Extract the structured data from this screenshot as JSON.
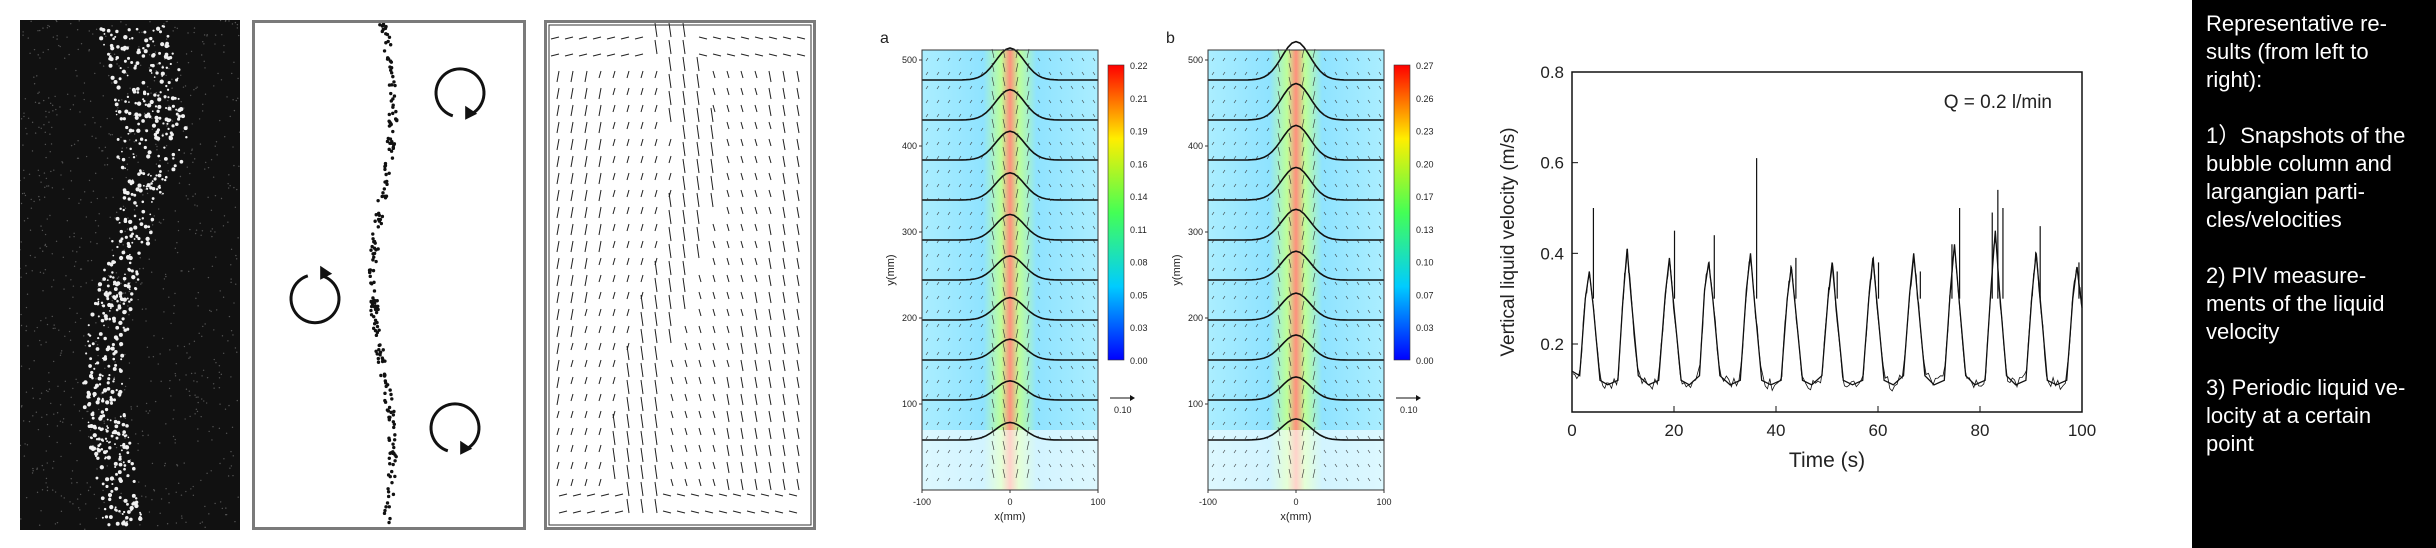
{
  "panels": {
    "bubble_snapshot": {
      "description_icon": "bubble-column-photo"
    },
    "particle_track": {
      "description_icon": "lagrangian-particles"
    },
    "velocity_vectors": {
      "description_icon": "vector-field"
    }
  },
  "piv_a": {
    "label": "a",
    "ylabel": "y(mm)",
    "xlabel": "x(mm)",
    "yticks": [
      "100",
      "200",
      "300",
      "400",
      "500"
    ],
    "xticks": [
      "-100",
      "0",
      "100"
    ],
    "colorbar": [
      "0.22",
      "0.21",
      "0.19",
      "0.16",
      "0.14",
      "0.11",
      "0.08",
      "0.05",
      "0.03",
      "0.00"
    ],
    "scale_value": "0.10"
  },
  "piv_b": {
    "label": "b",
    "ylabel": "y(mm)",
    "xlabel": "x(mm)",
    "yticks": [
      "100",
      "200",
      "300",
      "400",
      "500"
    ],
    "xticks": [
      "-100",
      "0",
      "100"
    ],
    "colorbar": [
      "0.27",
      "0.26",
      "0.23",
      "0.20",
      "0.17",
      "0.13",
      "0.10",
      "0.07",
      "0.03",
      "0.00"
    ],
    "scale_value": "0.10"
  },
  "chart_data": {
    "type": "line",
    "title": "",
    "annotation": "Q = 0.2 l/min",
    "xlabel": "Time (s)",
    "ylabel": "Vertical liquid velocity (m/s)",
    "xlim": [
      0,
      100
    ],
    "ylim": [
      0.05,
      0.8
    ],
    "xticks": [
      "0",
      "20",
      "40",
      "60",
      "80",
      "100"
    ],
    "yticks": [
      "0.2",
      "0.4",
      "0.6",
      "0.8"
    ],
    "series": [
      {
        "values_note": "periodic peaks",
        "x": [
          0,
          1.5,
          2.6,
          3.4,
          4.2,
          5.5,
          7,
          9,
          10,
          10.8,
          11.6,
          13,
          15,
          17,
          18.3,
          19.1,
          20,
          21.4,
          23,
          25,
          26,
          26.8,
          27.6,
          29,
          31,
          33,
          34.2,
          35.0,
          35.8,
          37.2,
          39,
          41,
          42.2,
          43.0,
          43.8,
          45.2,
          47,
          49,
          50.2,
          51.0,
          51.8,
          53.2,
          55,
          57,
          58.2,
          59.0,
          59.8,
          61.2,
          63,
          65,
          66.2,
          67.0,
          67.8,
          69.2,
          71,
          73,
          74.2,
          75.0,
          75.8,
          77.2,
          79,
          81,
          82.2,
          83.0,
          83.8,
          85.2,
          87,
          89,
          90.2,
          91.0,
          91.8,
          93.2,
          95,
          97,
          98.2,
          99.0,
          100
        ],
        "y": [
          0.14,
          0.13,
          0.3,
          0.36,
          0.28,
          0.12,
          0.11,
          0.12,
          0.3,
          0.41,
          0.3,
          0.13,
          0.11,
          0.12,
          0.31,
          0.39,
          0.28,
          0.12,
          0.11,
          0.13,
          0.32,
          0.38,
          0.3,
          0.13,
          0.11,
          0.12,
          0.32,
          0.4,
          0.29,
          0.12,
          0.11,
          0.12,
          0.3,
          0.37,
          0.28,
          0.12,
          0.11,
          0.13,
          0.3,
          0.38,
          0.28,
          0.12,
          0.11,
          0.12,
          0.3,
          0.39,
          0.29,
          0.12,
          0.11,
          0.13,
          0.31,
          0.4,
          0.3,
          0.13,
          0.11,
          0.12,
          0.32,
          0.42,
          0.31,
          0.13,
          0.11,
          0.12,
          0.33,
          0.45,
          0.32,
          0.13,
          0.11,
          0.12,
          0.31,
          0.4,
          0.3,
          0.12,
          0.11,
          0.12,
          0.3,
          0.37,
          0.28
        ]
      }
    ],
    "spikes_x": [
      4.2,
      20.1,
      27.9,
      36.2,
      43.9,
      52.0,
      60.1,
      68.3,
      74.5,
      76.0,
      82.4,
      83.5,
      84.5,
      91.8,
      99.4
    ],
    "spikes_y": [
      0.5,
      0.45,
      0.44,
      0.61,
      0.39,
      0.36,
      0.38,
      0.36,
      0.42,
      0.5,
      0.49,
      0.54,
      0.5,
      0.46,
      0.38
    ],
    "grid": false
  },
  "sidebar": {
    "text": "Representative re-\nsults (from left to\nright):\n\n1）Snapshots of the\nbubble column and\nlargangian parti-\ncles/velocities\n\n2) PIV measure-\nments of the liquid\nvelocity\n\n3) Periodic liquid ve-\nlocity at a certain\npoint"
  },
  "colors": {
    "sidebar_bg": "#000000",
    "sidebar_text": "#ffffff",
    "panel_border": "#7a7a7a"
  }
}
